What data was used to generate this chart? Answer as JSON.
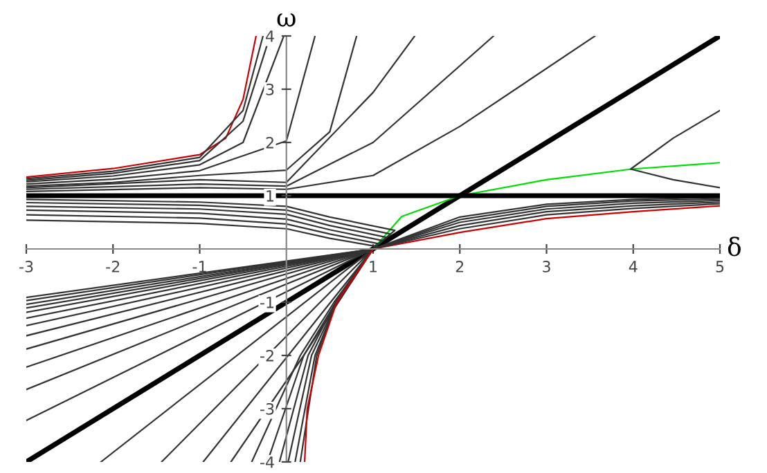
{
  "chart_data": {
    "type": "line",
    "xlabel": "δ",
    "ylabel": "ω",
    "xlim": [
      -3,
      5
    ],
    "ylim": [
      -4,
      4
    ],
    "xticks": [
      -3,
      -2,
      -1,
      1,
      2,
      3,
      4,
      5
    ],
    "yticks": [
      -4,
      -3,
      -2,
      -1,
      1,
      2,
      3,
      4
    ],
    "grid": false,
    "legend": false,
    "marker": "none",
    "line_style": "solid",
    "ref_lines": [
      {
        "axis": "y",
        "value": 1,
        "color": "#000000"
      }
    ],
    "series": [
      {
        "color": "#000000",
        "x": [
          -3,
          5
        ],
        "values": [
          -4,
          4
        ]
      },
      {
        "color": "#00dd00",
        "x": [
          1,
          1.12,
          1.33,
          2,
          3,
          3.98,
          5
        ],
        "values": [
          0,
          0.22,
          0.61,
          1,
          1.3,
          1.5,
          1.62
        ]
      },
      {
        "color": "#333333",
        "x": [
          5,
          4.46,
          3.97,
          4.46,
          5
        ],
        "values": [
          2.6,
          2.08,
          1.5,
          1.3,
          1.15
        ]
      },
      {
        "color": "#cc0000",
        "x": [
          -3,
          -2,
          -1,
          -0.7,
          -0.5,
          -0.35
        ],
        "values": [
          1.35,
          1.51,
          1.77,
          2.08,
          2.81,
          4
        ]
      },
      {
        "color": "#333333",
        "x": [
          -3,
          -2,
          -1,
          -0.5,
          -0.27
        ],
        "values": [
          1.32,
          1.46,
          1.72,
          2.6,
          4
        ]
      },
      {
        "color": "#333333",
        "x": [
          -3,
          -2,
          -1,
          -0.5,
          -0.19
        ],
        "values": [
          1.29,
          1.42,
          1.66,
          2.4,
          4
        ]
      },
      {
        "color": "#333333",
        "x": [
          -3,
          -2,
          -1,
          -0.5,
          -0.03
        ],
        "values": [
          1.26,
          1.37,
          1.58,
          2.0,
          4
        ]
      },
      {
        "color": "#333333",
        "x": [
          -3,
          -2,
          -1,
          0,
          0.33
        ],
        "values": [
          1.22,
          1.31,
          1.47,
          2.03,
          4
        ]
      },
      {
        "color": "#333333",
        "x": [
          -3,
          -2,
          -1,
          0,
          0.5,
          0.81
        ],
        "values": [
          1.18,
          1.25,
          1.38,
          1.48,
          2.2,
          4
        ]
      },
      {
        "color": "#333333",
        "x": [
          -3,
          -1,
          0,
          1,
          1.48
        ],
        "values": [
          1.15,
          1.3,
          1.25,
          2.94,
          4
        ]
      },
      {
        "color": "#333333",
        "x": [
          -3,
          -1,
          0,
          1,
          2.39
        ],
        "values": [
          1.12,
          1.22,
          1.18,
          2.0,
          4
        ]
      },
      {
        "color": "#333333",
        "x": [
          -3,
          -1,
          0,
          1,
          2,
          3.56
        ],
        "values": [
          1.08,
          1.15,
          1.12,
          1.38,
          2.3,
          4
        ]
      },
      {
        "color": "#333333",
        "x": [
          -3,
          -1,
          0,
          0.5,
          1.25,
          1,
          -3
        ],
        "values": [
          0.93,
          0.88,
          0.8,
          0.6,
          0.35,
          0,
          -0.91
        ]
      },
      {
        "color": "#333333",
        "x": [
          -3,
          -1,
          0,
          0.5,
          1.2,
          1,
          -3
        ],
        "values": [
          0.87,
          0.82,
          0.73,
          0.52,
          0.28,
          0,
          -0.97
        ]
      },
      {
        "color": "#333333",
        "x": [
          -3,
          -1,
          0,
          0.5,
          1.15,
          1,
          -3
        ],
        "values": [
          0.8,
          0.75,
          0.65,
          0.44,
          0.22,
          0,
          -1.04
        ]
      },
      {
        "color": "#333333",
        "x": [
          -3,
          -1,
          0,
          0.5,
          1.1,
          1,
          -3
        ],
        "values": [
          0.73,
          0.67,
          0.56,
          0.36,
          0.16,
          0,
          -1.11
        ]
      },
      {
        "color": "#333333",
        "x": [
          -3,
          -1,
          0,
          0.5,
          1.06,
          1,
          -3
        ],
        "values": [
          0.64,
          0.58,
          0.47,
          0.28,
          0.1,
          0,
          -1.19
        ]
      },
      {
        "color": "#333333",
        "x": [
          -3,
          -1,
          0,
          0.5,
          1.03,
          1,
          -3
        ],
        "values": [
          0.54,
          0.48,
          0.38,
          0.2,
          0.05,
          0,
          -1.3
        ]
      },
      {
        "color": "#cc0000",
        "x": [
          1,
          2,
          3,
          4,
          5
        ],
        "values": [
          0,
          0.31,
          0.57,
          0.7,
          0.81
        ]
      },
      {
        "color": "#333333",
        "x": [
          -3,
          1,
          2,
          3,
          4,
          5
        ],
        "values": [
          -1.44,
          0,
          0.38,
          0.64,
          0.76,
          0.85
        ]
      },
      {
        "color": "#333333",
        "x": [
          -3,
          1,
          2,
          3,
          4,
          5
        ],
        "values": [
          -1.63,
          0,
          0.44,
          0.7,
          0.81,
          0.88
        ]
      },
      {
        "color": "#333333",
        "x": [
          -3,
          1,
          2,
          3,
          4,
          5
        ],
        "values": [
          -1.88,
          0,
          0.5,
          0.75,
          0.86,
          0.91
        ]
      },
      {
        "color": "#333333",
        "x": [
          -3,
          1,
          2,
          3,
          4,
          5
        ],
        "values": [
          -2.22,
          0,
          0.55,
          0.8,
          0.9,
          0.94
        ]
      },
      {
        "color": "#333333",
        "x": [
          -3,
          1,
          2,
          3,
          4,
          5
        ],
        "values": [
          -2.64,
          0,
          0.6,
          0.84,
          0.93,
          0.97
        ]
      },
      {
        "color": "#333333",
        "x": [
          -3,
          1
        ],
        "values": [
          -3.22,
          0
        ]
      },
      {
        "color": "#333333",
        "x": [
          -2.14,
          1
        ],
        "values": [
          -4,
          0
        ]
      },
      {
        "color": "#333333",
        "x": [
          -1.44,
          1
        ],
        "values": [
          -4,
          0
        ]
      },
      {
        "color": "#333333",
        "x": [
          -0.96,
          1
        ],
        "values": [
          -4,
          0
        ]
      },
      {
        "color": "#333333",
        "x": [
          -0.64,
          0.2,
          1
        ],
        "values": [
          -4,
          -2,
          0
        ]
      },
      {
        "color": "#333333",
        "x": [
          -0.4,
          0.16,
          0.55,
          1
        ],
        "values": [
          -4,
          -2,
          -1,
          0
        ]
      },
      {
        "color": "#333333",
        "x": [
          -0.22,
          0.2,
          0.57,
          1
        ],
        "values": [
          -4,
          -2,
          -1,
          0
        ]
      },
      {
        "color": "#333333",
        "x": [
          -0.08,
          0.25,
          0.57,
          1
        ],
        "values": [
          -4,
          -2,
          -1,
          0
        ]
      },
      {
        "color": "#333333",
        "x": [
          0.02,
          0.29,
          0.58,
          1
        ],
        "values": [
          -4,
          -2,
          -1,
          0
        ]
      },
      {
        "color": "#333333",
        "x": [
          0.1,
          0.33,
          0.58,
          1
        ],
        "values": [
          -4,
          -2,
          -1,
          0
        ]
      },
      {
        "color": "#333333",
        "x": [
          0.16,
          0.35,
          0.58,
          1
        ],
        "values": [
          -4,
          -2,
          -1,
          0
        ]
      },
      {
        "color": "#cc0000",
        "x": [
          0.21,
          0.24,
          0.37,
          0.58,
          1
        ],
        "values": [
          -4,
          -3,
          -2,
          -1,
          0
        ]
      }
    ]
  }
}
